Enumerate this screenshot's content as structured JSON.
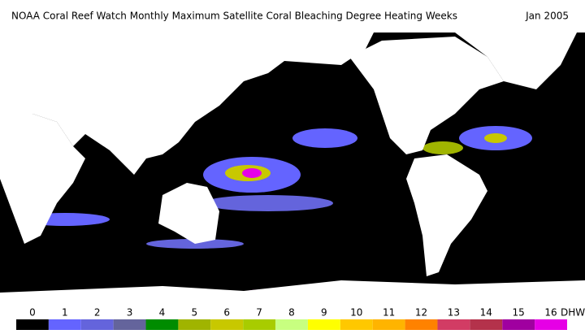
{
  "header": {
    "title": "NOAA Coral Reef Watch Monthly Maximum Satellite Coral Bleaching Degree Heating Weeks",
    "date": "Jan 2005"
  },
  "legend": {
    "unit": "DHW",
    "levels": [
      {
        "label": "0",
        "color": "#000000"
      },
      {
        "label": "1",
        "color": "#6464ff"
      },
      {
        "label": "2",
        "color": "#6464dc"
      },
      {
        "label": "3",
        "color": "#64649c"
      },
      {
        "label": "4",
        "color": "#008c00"
      },
      {
        "label": "5",
        "color": "#a0b400"
      },
      {
        "label": "6",
        "color": "#c8c800"
      },
      {
        "label": "7",
        "color": "#a8cc00"
      },
      {
        "label": "8",
        "color": "#c8ff80"
      },
      {
        "label": "9",
        "color": "#ffff00"
      },
      {
        "label": "10",
        "color": "#ffc800"
      },
      {
        "label": "11",
        "color": "#ffb400"
      },
      {
        "label": "12",
        "color": "#ff8200"
      },
      {
        "label": "13",
        "color": "#d23c64"
      },
      {
        "label": "14",
        "color": "#b4324b"
      },
      {
        "label": "15",
        "color": "#a000a0"
      },
      {
        "label": "16",
        "color": "#e600e6"
      }
    ]
  }
}
